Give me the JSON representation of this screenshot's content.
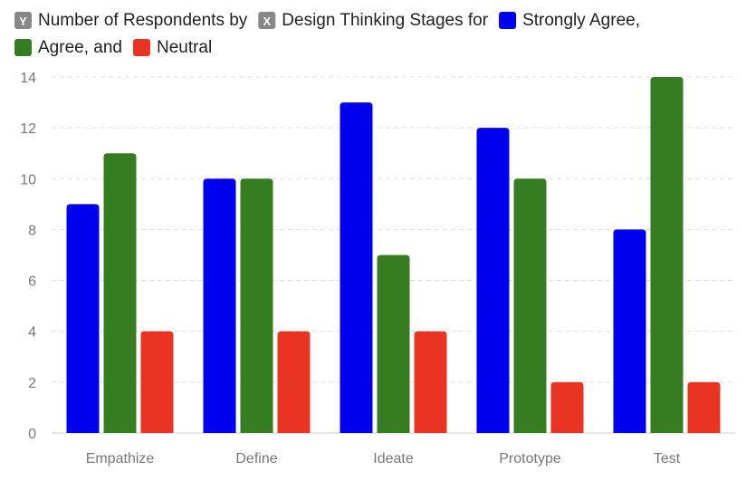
{
  "chart_data": {
    "type": "bar",
    "categories": [
      "Empathize",
      "Define",
      "Ideate",
      "Prototype",
      "Test"
    ],
    "series": [
      {
        "name": "Strongly Agree",
        "values": [
          9,
          10,
          13,
          12,
          8
        ],
        "color": "#0000ee"
      },
      {
        "name": "Agree",
        "values": [
          11,
          10,
          7,
          10,
          14
        ],
        "color": "#367d21"
      },
      {
        "name": "Neutral",
        "values": [
          4,
          4,
          4,
          2,
          2
        ],
        "color": "#e93323"
      }
    ],
    "ylim": [
      0,
      14
    ],
    "yticks": [
      0,
      2,
      4,
      6,
      8,
      10,
      12,
      14
    ],
    "grid": true,
    "legend": {
      "position": "top-left",
      "items": [
        {
          "badge": "Y",
          "text": "Number of Respondents by",
          "color": "#888888"
        },
        {
          "badge": "X",
          "text": "Design Thinking Stages for",
          "color": "#888888"
        },
        {
          "badge": "",
          "text": "Strongly Agree,",
          "color": "#0000ee"
        },
        {
          "badge": "",
          "text": "Agree, and",
          "color": "#367d21"
        },
        {
          "badge": "",
          "text": "Neutral",
          "color": "#e93323"
        }
      ]
    }
  }
}
